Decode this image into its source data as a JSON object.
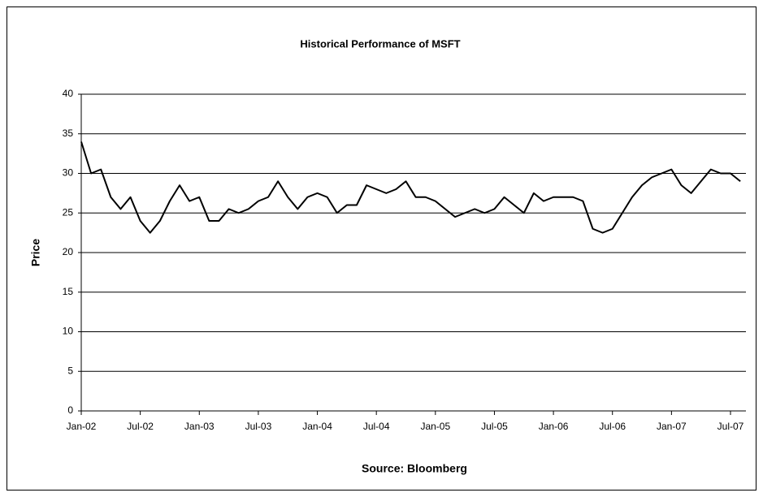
{
  "chart_data": {
    "type": "line",
    "title": "Historical Performance of MSFT",
    "y_label": "Price",
    "x_label": "Source: Bloomberg",
    "categories": [
      "Jan-02",
      null,
      null,
      null,
      null,
      null,
      "Jul-02",
      null,
      null,
      null,
      null,
      null,
      "Jan-03",
      null,
      null,
      null,
      null,
      null,
      "Jul-03",
      null,
      null,
      null,
      null,
      null,
      "Jan-04",
      null,
      null,
      null,
      null,
      null,
      "Jul-04",
      null,
      null,
      null,
      null,
      null,
      "Jan-05",
      null,
      null,
      null,
      null,
      null,
      "Jul-05",
      null,
      null,
      null,
      null,
      null,
      "Jan-06",
      null,
      null,
      null,
      null,
      null,
      "Jul-06",
      null,
      null,
      null,
      null,
      null,
      "Jan-07",
      null,
      null,
      null,
      null,
      null,
      "Jul-07",
      null
    ],
    "series": [
      {
        "name": "MSFT",
        "color": "#000000",
        "values": [
          34,
          30,
          30.5,
          27,
          25.5,
          27,
          24,
          22.5,
          24,
          26.5,
          28.5,
          26.5,
          27,
          24,
          24,
          25.5,
          25,
          25.5,
          26.5,
          27,
          29,
          27,
          25.5,
          27,
          27.5,
          27,
          25,
          26,
          26,
          28.5,
          28,
          27.5,
          28,
          29,
          27,
          27,
          26.5,
          25.5,
          24.5,
          25,
          25.5,
          25,
          25.5,
          27,
          26,
          25,
          27.5,
          26.5,
          27,
          27,
          27,
          26.5,
          23,
          22.5,
          23,
          25,
          27,
          28.5,
          29.5,
          30,
          30.5,
          28.5,
          27.5,
          29,
          30.5,
          30,
          30,
          29
        ]
      }
    ],
    "ylim": [
      0,
      40
    ],
    "yticks": [
      0,
      5,
      10,
      15,
      20,
      25,
      30,
      35,
      40
    ],
    "grid": true
  }
}
